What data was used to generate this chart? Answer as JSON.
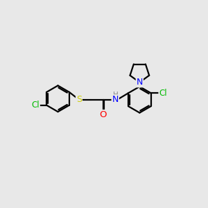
{
  "background_color": "#e8e8e8",
  "bond_color": "#000000",
  "atom_colors": {
    "Cl": "#00bb00",
    "S": "#cccc00",
    "O": "#ff0000",
    "N": "#0000ff",
    "H": "#888888",
    "C": "#000000"
  },
  "figsize": [
    3.0,
    3.0
  ],
  "dpi": 100,
  "xlim": [
    -4.8,
    4.8
  ],
  "ylim": [
    -2.8,
    2.8
  ]
}
